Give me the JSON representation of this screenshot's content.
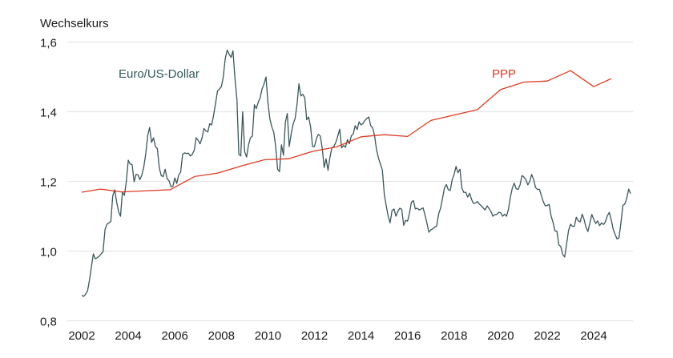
{
  "chart_data": {
    "type": "line",
    "title": "",
    "ylabel": "Wechselkurs",
    "xlabel": "",
    "ylim": [
      0.8,
      1.6
    ],
    "xlim": [
      2001.4,
      2025.8
    ],
    "yticks": [
      0.8,
      1.0,
      1.2,
      1.4,
      1.6
    ],
    "ytick_labels": [
      "0,8",
      "1,0",
      "1,2",
      "1,4",
      "1,6"
    ],
    "xticks": [
      2002,
      2004,
      2006,
      2008,
      2010,
      2012,
      2014,
      2016,
      2018,
      2020,
      2022,
      2024
    ],
    "xtick_labels": [
      "2002",
      "2004",
      "2006",
      "2008",
      "2010",
      "2012",
      "2014",
      "2016",
      "2018",
      "2020",
      "2022",
      "2024"
    ],
    "grid": true,
    "legend": "inline labels",
    "series": [
      {
        "name": "Euro/US-Dollar",
        "color": "#3b5659",
        "frequency": "monthly",
        "start_year": 2002,
        "values": [
          0.873,
          0.87,
          0.876,
          0.886,
          0.917,
          0.955,
          0.992,
          0.978,
          0.981,
          0.985,
          0.992,
          0.998,
          1.062,
          1.077,
          1.081,
          1.085,
          1.158,
          1.176,
          1.141,
          1.113,
          1.1,
          1.169,
          1.16,
          1.2,
          1.261,
          1.25,
          1.248,
          1.199,
          1.22,
          1.219,
          1.205,
          1.218,
          1.242,
          1.279,
          1.33,
          1.355,
          1.312,
          1.325,
          1.3,
          1.294,
          1.239,
          1.216,
          1.214,
          1.235,
          1.208,
          1.202,
          1.185,
          1.186,
          1.21,
          1.194,
          1.218,
          1.227,
          1.277,
          1.282,
          1.28,
          1.281,
          1.273,
          1.278,
          1.289,
          1.325,
          1.318,
          1.308,
          1.324,
          1.352,
          1.345,
          1.342,
          1.366,
          1.362,
          1.39,
          1.423,
          1.46,
          1.465,
          1.472,
          1.5,
          1.552,
          1.577,
          1.565,
          1.556,
          1.575,
          1.497,
          1.437,
          1.278,
          1.273,
          1.4,
          1.285,
          1.27,
          1.305,
          1.325,
          1.33,
          1.42,
          1.409,
          1.427,
          1.44,
          1.465,
          1.48,
          1.5,
          1.427,
          1.38,
          1.357,
          1.341,
          1.3,
          1.235,
          1.228,
          1.305,
          1.275,
          1.37,
          1.395,
          1.3,
          1.336,
          1.365,
          1.38,
          1.42,
          1.48,
          1.445,
          1.45,
          1.44,
          1.377,
          1.385,
          1.356,
          1.3,
          1.3,
          1.322,
          1.335,
          1.33,
          1.295,
          1.24,
          1.265,
          1.232,
          1.27,
          1.297,
          1.3,
          1.312,
          1.33,
          1.35,
          1.296,
          1.303,
          1.298,
          1.32,
          1.308,
          1.331,
          1.336,
          1.36,
          1.349,
          1.371,
          1.362,
          1.366,
          1.375,
          1.381,
          1.385,
          1.36,
          1.354,
          1.332,
          1.29,
          1.267,
          1.25,
          1.233,
          1.162,
          1.13,
          1.1,
          1.081,
          1.116,
          1.121,
          1.1,
          1.114,
          1.123,
          1.12,
          1.074,
          1.088,
          1.086,
          1.109,
          1.14,
          1.145,
          1.121,
          1.123,
          1.118,
          1.121,
          1.124,
          1.103,
          1.08,
          1.054,
          1.061,
          1.064,
          1.069,
          1.072,
          1.106,
          1.123,
          1.151,
          1.181,
          1.191,
          1.176,
          1.174,
          1.205,
          1.22,
          1.243,
          1.225,
          1.235,
          1.181,
          1.168,
          1.169,
          1.155,
          1.166,
          1.148,
          1.137,
          1.138,
          1.142,
          1.135,
          1.13,
          1.124,
          1.118,
          1.13,
          1.122,
          1.113,
          1.1,
          1.105,
          1.105,
          1.111,
          1.11,
          1.1,
          1.106,
          1.1,
          1.12,
          1.155,
          1.18,
          1.195,
          1.179,
          1.177,
          1.19,
          1.217,
          1.212,
          1.205,
          1.19,
          1.2,
          1.22,
          1.205,
          1.182,
          1.177,
          1.177,
          1.16,
          1.141,
          1.13,
          1.131,
          1.134,
          1.101,
          1.082,
          1.058,
          1.057,
          1.018,
          1.013,
          0.99,
          0.983,
          1.02,
          1.059,
          1.077,
          1.071,
          1.071,
          1.097,
          1.087,
          1.084,
          1.106,
          1.091,
          1.068,
          1.056,
          1.081,
          1.105,
          1.091,
          1.079,
          1.087,
          1.073,
          1.081,
          1.076,
          1.084,
          1.101,
          1.111,
          1.09,
          1.063,
          1.048,
          1.035,
          1.038,
          1.081,
          1.131,
          1.135,
          1.152,
          1.178,
          1.165
        ]
      },
      {
        "name": "PPP",
        "color": "#dc3b22",
        "points": [
          [
            2002.0,
            1.169
          ],
          [
            2002.8,
            1.178
          ],
          [
            2003.7,
            1.17
          ],
          [
            2005.8,
            1.176
          ],
          [
            2006.85,
            1.214
          ],
          [
            2007.85,
            1.224
          ],
          [
            2008.9,
            1.245
          ],
          [
            2009.85,
            1.262
          ],
          [
            2010.9,
            1.265
          ],
          [
            2011.9,
            1.286
          ],
          [
            2012.95,
            1.299
          ],
          [
            2014.0,
            1.328
          ],
          [
            2015.0,
            1.334
          ],
          [
            2016.0,
            1.329
          ],
          [
            2017.0,
            1.375
          ],
          [
            2019.0,
            1.406
          ],
          [
            2020.0,
            1.464
          ],
          [
            2021.0,
            1.485
          ],
          [
            2022.0,
            1.488
          ],
          [
            2023.0,
            1.518
          ],
          [
            2024.0,
            1.472
          ],
          [
            2024.75,
            1.495
          ]
        ]
      }
    ]
  }
}
